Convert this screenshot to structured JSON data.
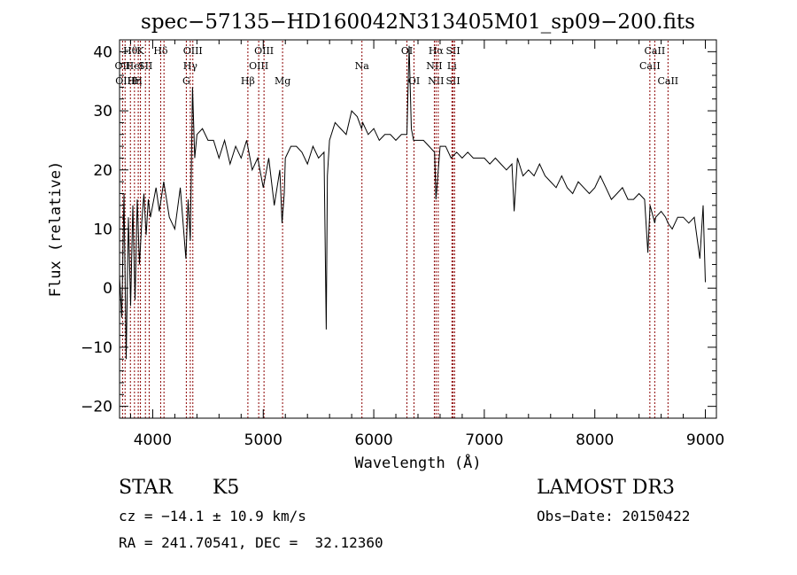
{
  "chart_data": {
    "type": "line",
    "title": "spec−57135−HD160042N313405M01_sp09−200.fits",
    "xlabel": "Wavelength (Å)",
    "ylabel": "Flux (relative)",
    "xlim": [
      3700,
      9100
    ],
    "ylim": [
      -22,
      42
    ],
    "x_ticks": [
      4000,
      5000,
      6000,
      7000,
      8000,
      9000
    ],
    "y_ticks": [
      -20,
      -10,
      0,
      10,
      20,
      30,
      40
    ],
    "x_tick_labels": [
      "4000",
      "5000",
      "6000",
      "7000",
      "8000",
      "9000"
    ],
    "y_tick_labels": [
      "−20",
      "−10",
      "0",
      "10",
      "20",
      "30",
      "40"
    ],
    "grid": false,
    "line_color": "#000000",
    "marker_color": "#8b0000",
    "series": [
      {
        "x": [
          3700,
          3720,
          3740,
          3760,
          3780,
          3800,
          3820,
          3840,
          3860,
          3880,
          3900,
          3920,
          3940,
          3960,
          3980,
          4000,
          4030,
          4060,
          4100,
          4150,
          4200,
          4250,
          4300,
          4320,
          4340,
          4360,
          4380,
          4400,
          4450,
          4500,
          4550,
          4600,
          4650,
          4700,
          4750,
          4800,
          4850,
          4900,
          4950,
          5000,
          5050,
          5100,
          5150,
          5170,
          5190,
          5200,
          5250,
          5300,
          5350,
          5400,
          5450,
          5500,
          5550,
          5570,
          5580,
          5600,
          5650,
          5700,
          5750,
          5800,
          5850,
          5890,
          5900,
          5950,
          6000,
          6050,
          6100,
          6150,
          6200,
          6250,
          6300,
          6320,
          6340,
          6360,
          6400,
          6450,
          6500,
          6550,
          6563,
          6600,
          6650,
          6700,
          6750,
          6800,
          6850,
          6900,
          6950,
          7000,
          7050,
          7100,
          7150,
          7200,
          7250,
          7270,
          7300,
          7350,
          7400,
          7450,
          7500,
          7550,
          7600,
          7650,
          7700,
          7750,
          7800,
          7850,
          7900,
          7950,
          8000,
          8050,
          8100,
          8150,
          8200,
          8250,
          8300,
          8350,
          8400,
          8450,
          8480,
          8500,
          8542,
          8550,
          8600,
          8640,
          8662,
          8700,
          8750,
          8800,
          8850,
          8900,
          8950,
          8980,
          9000
        ],
        "y": [
          2,
          -5,
          16,
          -12,
          12,
          -3,
          14,
          -2,
          15,
          4,
          11,
          16,
          9,
          15,
          12,
          14,
          17,
          13,
          18,
          12,
          10,
          17,
          5,
          15,
          8,
          34,
          22,
          26,
          27,
          25,
          25,
          22,
          25,
          21,
          24,
          22,
          25,
          20,
          22,
          17,
          22,
          14,
          20,
          11,
          16,
          22,
          24,
          24,
          23,
          21,
          24,
          22,
          23,
          -7,
          19,
          25,
          28,
          27,
          26,
          30,
          29,
          27,
          28,
          26,
          27,
          25,
          26,
          26,
          25,
          26,
          26,
          41,
          27,
          25,
          25,
          25,
          24,
          23,
          15,
          24,
          24,
          22,
          23,
          22,
          23,
          22,
          22,
          22,
          21,
          22,
          21,
          20,
          21,
          13,
          22,
          19,
          20,
          19,
          21,
          19,
          18,
          17,
          19,
          17,
          16,
          18,
          17,
          16,
          17,
          19,
          17,
          15,
          16,
          17,
          15,
          15,
          16,
          15,
          6,
          14,
          11,
          12,
          13,
          12,
          11,
          10,
          12,
          12,
          11,
          12,
          5,
          14,
          1
        ]
      }
    ],
    "line_markers": [
      {
        "wl": 3727,
        "labels": [
          "OII"
        ],
        "rows": [
          1
        ]
      },
      {
        "wl": 3750,
        "labels": [
          "OIII"
        ],
        "rows": [
          2
        ]
      },
      {
        "wl": 3798,
        "labels": [
          "Hθ"
        ],
        "rows": [
          0
        ]
      },
      {
        "wl": 3835,
        "labels": [
          "Hη",
          "HeI"
        ],
        "rows": [
          2,
          1
        ]
      },
      {
        "wl": 3869,
        "labels": [
          "H"
        ],
        "rows": [
          2
        ]
      },
      {
        "wl": 3889,
        "labels": [
          "K"
        ],
        "rows": [
          0
        ]
      },
      {
        "wl": 3934,
        "labels": [
          "SII"
        ],
        "rows": [
          1
        ]
      },
      {
        "wl": 3968,
        "labels": [],
        "rows": []
      },
      {
        "wl": 4072,
        "labels": [
          "Hδ"
        ],
        "rows": [
          0
        ]
      },
      {
        "wl": 4102,
        "labels": [],
        "rows": []
      },
      {
        "wl": 4304,
        "labels": [
          "G"
        ],
        "rows": [
          2
        ]
      },
      {
        "wl": 4340,
        "labels": [
          "Hγ"
        ],
        "rows": [
          1
        ]
      },
      {
        "wl": 4363,
        "labels": [
          "OIII"
        ],
        "rows": [
          0
        ]
      },
      {
        "wl": 4861,
        "labels": [
          "Hβ"
        ],
        "rows": [
          2
        ]
      },
      {
        "wl": 4959,
        "labels": [
          "OIII"
        ],
        "rows": [
          1
        ]
      },
      {
        "wl": 5007,
        "labels": [
          "OIII"
        ],
        "rows": [
          0
        ]
      },
      {
        "wl": 5175,
        "labels": [
          "Mg"
        ],
        "rows": [
          2
        ]
      },
      {
        "wl": 5893,
        "labels": [
          "Na"
        ],
        "rows": [
          1
        ]
      },
      {
        "wl": 6300,
        "labels": [
          "OI"
        ],
        "rows": [
          0
        ]
      },
      {
        "wl": 6364,
        "labels": [
          "OI"
        ],
        "rows": [
          2
        ]
      },
      {
        "wl": 6548,
        "labels": [
          "NII"
        ],
        "rows": [
          1
        ]
      },
      {
        "wl": 6563,
        "labels": [
          "Hα",
          "NII"
        ],
        "rows": [
          0,
          2
        ]
      },
      {
        "wl": 6583,
        "labels": [],
        "rows": []
      },
      {
        "wl": 6707,
        "labels": [
          "Li"
        ],
        "rows": [
          1
        ]
      },
      {
        "wl": 6717,
        "labels": [
          "SII",
          "SII"
        ],
        "rows": [
          0,
          2
        ]
      },
      {
        "wl": 6731,
        "labels": [],
        "rows": []
      },
      {
        "wl": 8498,
        "labels": [
          "CaII"
        ],
        "rows": [
          1
        ]
      },
      {
        "wl": 8542,
        "labels": [
          "CaII"
        ],
        "rows": [
          0
        ]
      },
      {
        "wl": 8662,
        "labels": [
          "CaII"
        ],
        "rows": [
          2
        ]
      }
    ]
  },
  "info": {
    "object_class": "STAR",
    "subclass": "K5",
    "survey": "LAMOST DR3",
    "cz": "cz = −14.1 ± 10.9 km/s",
    "obs_date": "Obs−Date: 20150422",
    "coords": "RA = 241.70541, DEC =  32.12360"
  }
}
